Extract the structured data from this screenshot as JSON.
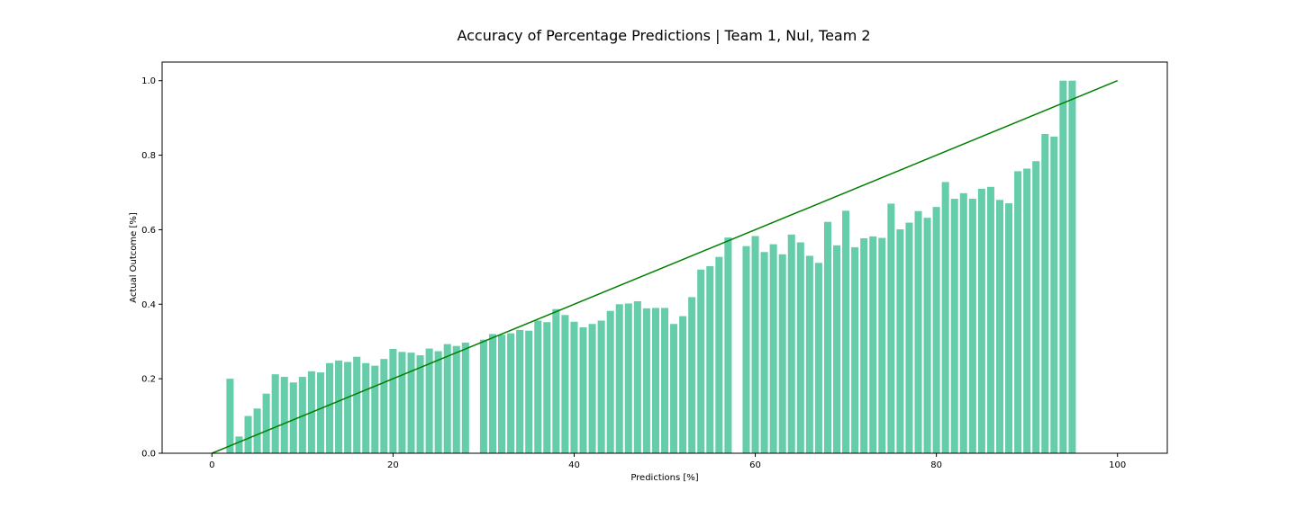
{
  "chart_data": {
    "type": "bar",
    "title": "Accuracy of Percentage Predictions | Team 1, Nul, Team 2",
    "xlabel": "Predictions [%]",
    "ylabel": "Actual Outcome [%]",
    "xlim": [
      -5.5,
      105.5
    ],
    "ylim": [
      0,
      1.05
    ],
    "xticks": [
      0,
      20,
      40,
      60,
      80,
      100
    ],
    "xtick_labels": [
      "0",
      "20",
      "40",
      "60",
      "80",
      "100"
    ],
    "yticks": [
      0.0,
      0.2,
      0.4,
      0.6,
      0.8,
      1.0
    ],
    "ytick_labels": [
      "0.0",
      "0.2",
      "0.4",
      "0.6",
      "0.8",
      "1.0"
    ],
    "grid": false,
    "bar_color": "#66cdaa",
    "reference_line_color": "#008000",
    "reference_line": {
      "x": [
        0,
        100
      ],
      "y": [
        0,
        1
      ]
    },
    "x": [
      2,
      3,
      4,
      5,
      6,
      7,
      8,
      9,
      10,
      11,
      12,
      13,
      14,
      15,
      16,
      17,
      18,
      19,
      20,
      21,
      22,
      23,
      24,
      25,
      26,
      27,
      28,
      30,
      31,
      32,
      33,
      34,
      35,
      36,
      37,
      38,
      39,
      40,
      41,
      42,
      43,
      44,
      45,
      46,
      47,
      48,
      49,
      50,
      51,
      52,
      53,
      54,
      55,
      56,
      57,
      59,
      60,
      61,
      62,
      63,
      64,
      65,
      66,
      67,
      68,
      69,
      70,
      71,
      72,
      73,
      74,
      75,
      76,
      77,
      78,
      79,
      80,
      81,
      82,
      83,
      84,
      85,
      86,
      87,
      88,
      89,
      90,
      91,
      92,
      93,
      94,
      95
    ],
    "values": [
      0.2,
      0.045,
      0.1,
      0.12,
      0.16,
      0.212,
      0.205,
      0.19,
      0.205,
      0.22,
      0.217,
      0.242,
      0.249,
      0.245,
      0.259,
      0.242,
      0.235,
      0.253,
      0.28,
      0.272,
      0.27,
      0.263,
      0.281,
      0.274,
      0.293,
      0.288,
      0.297,
      0.305,
      0.32,
      0.318,
      0.322,
      0.331,
      0.329,
      0.356,
      0.352,
      0.387,
      0.371,
      0.353,
      0.338,
      0.347,
      0.356,
      0.382,
      0.4,
      0.402,
      0.408,
      0.389,
      0.39,
      0.39,
      0.347,
      0.368,
      0.419,
      0.493,
      0.502,
      0.527,
      0.579,
      0.556,
      0.583,
      0.54,
      0.561,
      0.534,
      0.587,
      0.566,
      0.53,
      0.511,
      0.621,
      0.558,
      0.651,
      0.553,
      0.577,
      0.582,
      0.578,
      0.67,
      0.601,
      0.619,
      0.65,
      0.632,
      0.661,
      0.728,
      0.683,
      0.698,
      0.683,
      0.71,
      0.715,
      0.68,
      0.671,
      0.757,
      0.764,
      0.784,
      0.857,
      0.85,
      1.0,
      1.0
    ]
  }
}
